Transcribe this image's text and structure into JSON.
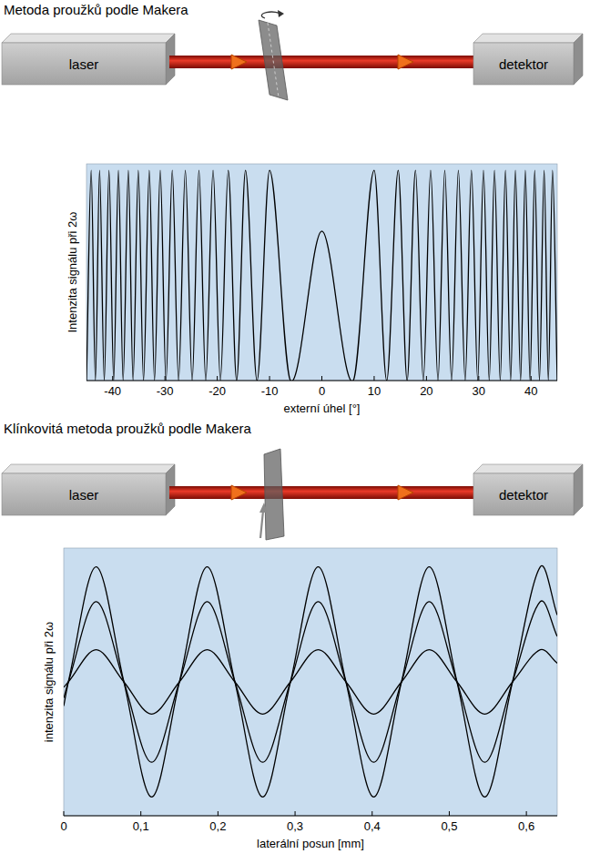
{
  "chart_data": [
    {
      "type": "line",
      "title": "Metoda proužků podle Makera",
      "xlabel": "externí úhel [°]",
      "ylabel": "Intenzita signálu při 2ω",
      "annotations": [
        "laser",
        "detektor"
      ],
      "x": [
        -45,
        -44.1,
        -43.3,
        -42.5,
        -41.6,
        -40.7,
        -39.8,
        -38.9,
        -38,
        -37,
        -36.1,
        -35.1,
        -34.1,
        -33,
        -32,
        -30.9,
        -29.8,
        -28.6,
        -27.4,
        -26.1,
        -24.8,
        -23.5,
        -22.2,
        -20.8,
        -19.4,
        -17.9,
        -16.3,
        -14.6,
        -12.4,
        -10,
        -6,
        0,
        6,
        10,
        12.4,
        14.6,
        16.3,
        17.9,
        19.4,
        20.8,
        22.2,
        23.5,
        24.8,
        26.1,
        27.4,
        28.6,
        29.8,
        30.9,
        32,
        33,
        34.1,
        35.1,
        36.1,
        37,
        38,
        38.9,
        39.8,
        40.7,
        41.6,
        42.5,
        43.3,
        44.1,
        45
      ],
      "values": [
        0,
        0.97,
        0,
        0.97,
        0,
        0.97,
        0,
        0.97,
        0,
        0.97,
        0,
        0.97,
        0,
        0.97,
        0,
        0.97,
        0,
        0.97,
        0,
        0.97,
        0,
        0.97,
        0,
        0.97,
        0,
        0.97,
        0,
        0.97,
        0,
        0.97,
        0,
        0.69,
        0,
        0.97,
        0,
        0.97,
        0,
        0.97,
        0,
        0.97,
        0,
        0.97,
        0,
        0.97,
        0,
        0.97,
        0,
        0.97,
        0,
        0.97,
        0,
        0.97,
        0,
        0.97,
        0,
        0.97,
        0,
        0.97,
        0,
        0.97,
        0,
        0.97,
        0
      ],
      "color": "#000000",
      "line_style": "smooth",
      "xlim": [
        -45,
        45
      ],
      "xticks": [
        -40,
        -30,
        -20,
        -10,
        0,
        10,
        20,
        30,
        40
      ],
      "ylim": [
        0,
        1
      ],
      "grid": false,
      "tick_labels": "x"
    },
    {
      "type": "line",
      "title": "Klínkovitá metoda proužků podle Makera",
      "xlabel": "laterální posun [mm]",
      "ylabel": "intenzita signálu při 2ω",
      "annotations": [
        "laser",
        "detektor"
      ],
      "x": [
        0,
        0.006,
        0.042,
        0.078,
        0.114,
        0.15,
        0.186,
        0.222,
        0.258,
        0.294,
        0.33,
        0.366,
        0.402,
        0.438,
        0.474,
        0.51,
        0.546,
        0.582,
        0.618,
        0.64
      ],
      "series": [
        {
          "color": "#000000",
          "values": [
            0.41,
            0.5,
            0.93,
            0.5,
            0.07,
            0.5,
            0.93,
            0.5,
            0.07,
            0.5,
            0.93,
            0.5,
            0.07,
            0.5,
            0.93,
            0.5,
            0.07,
            0.5,
            0.93,
            0.75
          ]
        },
        {
          "color": "#000000",
          "values": [
            0.44,
            0.5,
            0.8,
            0.5,
            0.2,
            0.5,
            0.8,
            0.5,
            0.2,
            0.5,
            0.8,
            0.5,
            0.2,
            0.5,
            0.8,
            0.5,
            0.2,
            0.5,
            0.8,
            0.67
          ]
        },
        {
          "color": "#000000",
          "values": [
            0.48,
            0.5,
            0.62,
            0.5,
            0.38,
            0.5,
            0.62,
            0.5,
            0.38,
            0.5,
            0.62,
            0.5,
            0.38,
            0.5,
            0.62,
            0.5,
            0.38,
            0.5,
            0.62,
            0.57
          ]
        }
      ],
      "line_style": "smooth",
      "xlim": [
        0,
        0.64
      ],
      "xticks": [
        0,
        {
          "value": 0.1,
          "label": "0,1"
        },
        {
          "value": 0.2,
          "label": "0,2"
        },
        {
          "value": 0.3,
          "label": "0,3"
        },
        {
          "value": 0.4,
          "label": "0,4"
        },
        {
          "value": 0.5,
          "label": "0,5"
        },
        {
          "value": 0.6,
          "label": "0,6"
        }
      ],
      "ylim": [
        0,
        1
      ],
      "grid": false,
      "tick_labels": "x"
    }
  ]
}
